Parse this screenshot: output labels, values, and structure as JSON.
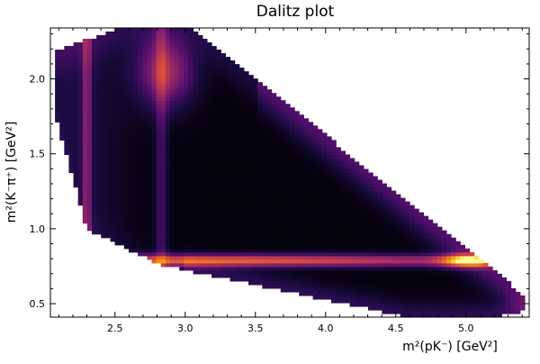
{
  "chart_data": {
    "type": "heatmap",
    "title": "Dalitz plot",
    "xlabel": "m²(pK⁻) [GeV²]",
    "ylabel": "m²(K⁻π⁺) [GeV²]",
    "xlim": [
      2.04,
      5.45
    ],
    "ylim": [
      0.41,
      2.34
    ],
    "xticks": [
      2.5,
      3.0,
      3.5,
      4.0,
      4.5,
      5.0
    ],
    "xtick_labels": [
      "2.5",
      "3.0",
      "3.5",
      "4.0",
      "4.5",
      "5.0"
    ],
    "yticks": [
      0.5,
      1.0,
      1.5,
      2.0
    ],
    "ytick_labels": [
      "0.5",
      "1.0",
      "1.5",
      "2.0"
    ],
    "colormap": "inferno",
    "grid": false,
    "legend": "none",
    "colors": {
      "low": "#000004",
      "mid": "#7a1d6c",
      "high": "#f9a20e",
      "peak": "#fcffa4"
    },
    "features": [
      {
        "name": "K*(892) band",
        "axis": "y",
        "center": 0.79,
        "relative_intensity": 1.0
      },
      {
        "name": "vertical band",
        "axis": "x",
        "center": 2.3,
        "relative_intensity": 0.45
      },
      {
        "name": "vertical band",
        "axis": "x",
        "center": 2.83,
        "relative_intensity": 0.35
      },
      {
        "name": "hot spot",
        "x": 2.85,
        "y": 2.05,
        "relative_intensity": 0.55
      },
      {
        "name": "hot spot",
        "x": 5.0,
        "y": 0.8,
        "relative_intensity": 1.0
      },
      {
        "name": "diagonal band",
        "direction": "along upper-right boundary",
        "relative_intensity": 0.35
      }
    ]
  }
}
